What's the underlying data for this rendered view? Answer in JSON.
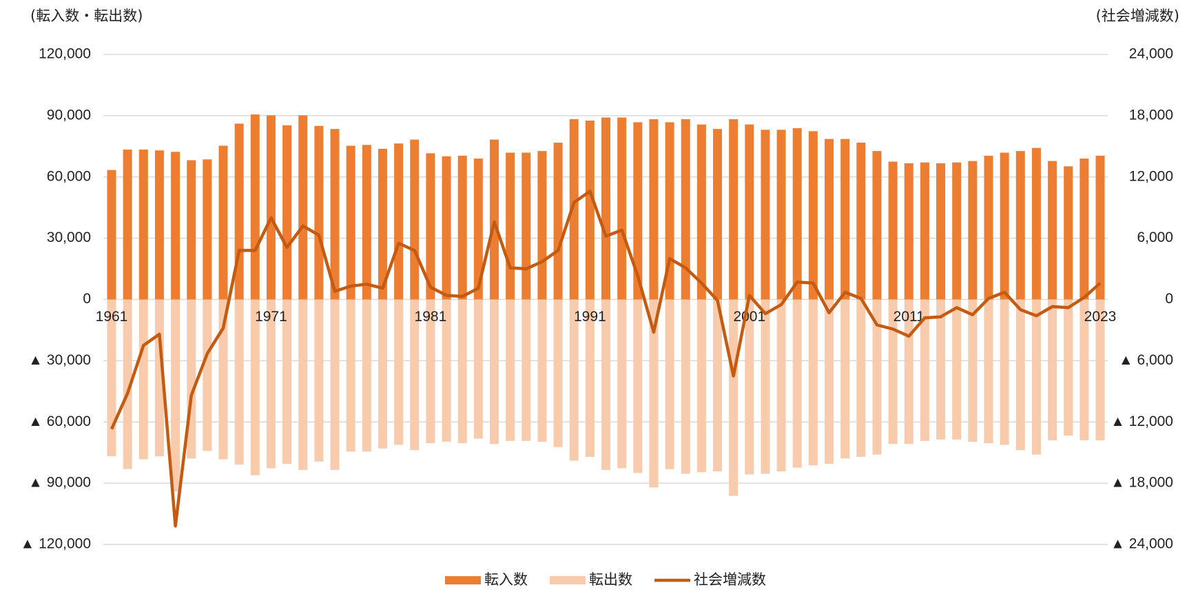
{
  "chart_data": {
    "type": "bar",
    "y_axis_title": "(転入数・転出数)",
    "y2_axis_title": "(社会増減数)",
    "categories": [
      "1961",
      null,
      null,
      null,
      null,
      null,
      null,
      null,
      null,
      null,
      "1971",
      null,
      null,
      null,
      null,
      null,
      null,
      null,
      null,
      null,
      "1981",
      null,
      null,
      null,
      null,
      null,
      null,
      null,
      null,
      null,
      "1991",
      null,
      null,
      null,
      null,
      null,
      null,
      null,
      null,
      null,
      "2001",
      null,
      null,
      null,
      null,
      null,
      null,
      null,
      null,
      null,
      "2011",
      null,
      null,
      null,
      null,
      null,
      null,
      null,
      null,
      null,
      null,
      null,
      "2023"
    ],
    "ylim": [
      -120000,
      120000
    ],
    "yticks": [
      {
        "value": -120000,
        "label": "▲ 120,000"
      },
      {
        "value": -90000,
        "label": "▲ 90,000"
      },
      {
        "value": -60000,
        "label": "▲ 60,000"
      },
      {
        "value": -30000,
        "label": "▲ 30,000"
      },
      0,
      {
        "value": 30000,
        "label": "30,000"
      },
      {
        "value": 60000,
        "label": "60,000"
      },
      {
        "value": 90000,
        "label": "90,000"
      },
      {
        "value": 120000,
        "label": "120,000"
      }
    ],
    "y2lim": [
      -24000,
      24000
    ],
    "y2ticks": [
      {
        "value": -24000,
        "label": "▲ 24,000"
      },
      {
        "value": -18000,
        "label": "▲ 18,000"
      },
      {
        "value": -12000,
        "label": "▲ 12,000"
      },
      {
        "value": -6000,
        "label": "▲ 6,000"
      },
      0,
      {
        "value": 6000,
        "label": "6,000"
      },
      {
        "value": 12000,
        "label": "12,000"
      },
      {
        "value": 18000,
        "label": "18,000"
      },
      {
        "value": 24000,
        "label": "24,000"
      }
    ],
    "grid": true,
    "legend": "bottom",
    "series": [
      {
        "name": "転入数",
        "type": "bar",
        "color": "#ed7d31",
        "values": [
          63400,
          73400,
          73400,
          73000,
          72300,
          68200,
          68600,
          75300,
          86100,
          90600,
          90200,
          85300,
          90200,
          85000,
          83500,
          75300,
          75700,
          73800,
          76400,
          78300,
          71600,
          70100,
          70400,
          69000,
          78300,
          71900,
          71900,
          72700,
          76800,
          88300,
          87600,
          89100,
          89100,
          86800,
          88300,
          86800,
          88300,
          85700,
          83500,
          88300,
          85700,
          83100,
          83100,
          83900,
          82400,
          78600,
          78600,
          76800,
          72700,
          67500,
          66700,
          67100,
          66700,
          67100,
          67800,
          70400,
          71900,
          72700,
          74200,
          67800,
          65200,
          69000,
          70400
        ]
      },
      {
        "name": "転出数",
        "type": "bar",
        "color": "#f8cbad",
        "values": [
          -76800,
          -83100,
          -78300,
          -76800,
          -94000,
          -77900,
          -74200,
          -78300,
          -80900,
          -86100,
          -82700,
          -80500,
          -83500,
          -79400,
          -83500,
          -74500,
          -74500,
          -73000,
          -71200,
          -73800,
          -70400,
          -69700,
          -70400,
          -68200,
          -70800,
          -69300,
          -69300,
          -69700,
          -72300,
          -79000,
          -77100,
          -83500,
          -82700,
          -85000,
          -92100,
          -83100,
          -85400,
          -84600,
          -84200,
          -96200,
          -85700,
          -85400,
          -84200,
          -82400,
          -81300,
          -80500,
          -77900,
          -77100,
          -76000,
          -70800,
          -70800,
          -69300,
          -68600,
          -68600,
          -69700,
          -70400,
          -71200,
          -73800,
          -76000,
          -69000,
          -66700,
          -69000,
          -69000
        ]
      },
      {
        "name": "社会増減数",
        "type": "line",
        "axis": "y2",
        "color": "#c55a11",
        "values": [
          -12700,
          -9200,
          -4500,
          -3400,
          -22200,
          -9400,
          -5300,
          -2800,
          4800,
          4800,
          8000,
          5100,
          7200,
          6300,
          800,
          1300,
          1500,
          1100,
          5500,
          4800,
          1200,
          400,
          300,
          1100,
          7600,
          3100,
          3000,
          3700,
          4800,
          9500,
          10600,
          6200,
          6800,
          2300,
          -3200,
          4000,
          3100,
          1600,
          -100,
          -7500,
          400,
          -1400,
          -500,
          1700,
          1600,
          -1300,
          700,
          100,
          -2500,
          -2900,
          -3600,
          -1800,
          -1700,
          -800,
          -1500,
          100,
          700,
          -1000,
          -1600,
          -700,
          -800,
          200,
          1600
        ]
      }
    ]
  }
}
